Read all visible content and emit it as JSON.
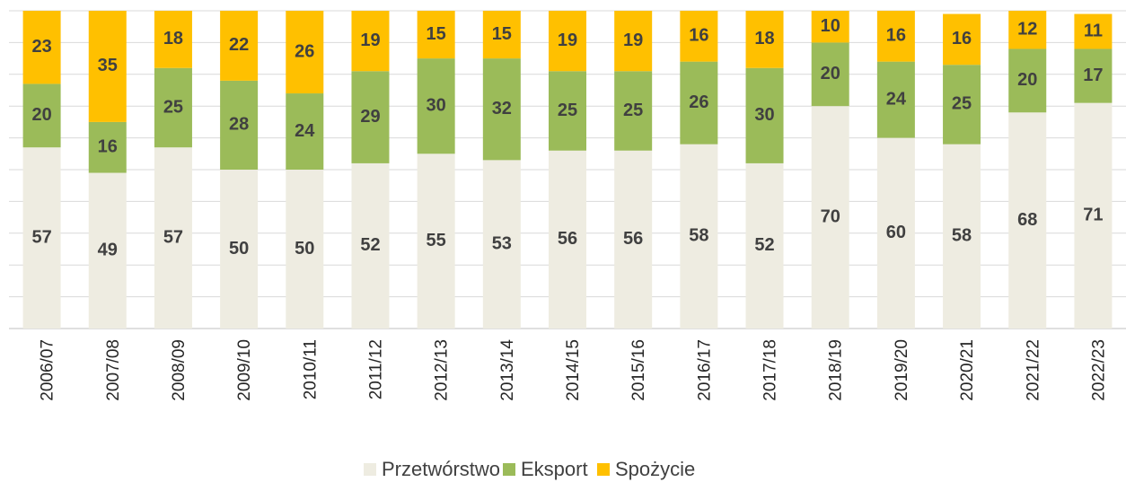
{
  "chart_data": {
    "type": "stacked_bar",
    "categories": [
      "2006/07",
      "2007/08",
      "2008/09",
      "2009/10",
      "2010/11",
      "2011/12",
      "2012/13",
      "2013/14",
      "2014/15",
      "2015/16",
      "2016/17",
      "2017/18",
      "2018/19",
      "2019/20",
      "2020/21",
      "2021/22",
      "2022/23"
    ],
    "series": [
      {
        "name": "Przetwórstwo",
        "color": "#eeece1",
        "values": [
          57,
          49,
          57,
          50,
          50,
          52,
          55,
          53,
          56,
          56,
          58,
          52,
          70,
          60,
          58,
          68,
          71
        ]
      },
      {
        "name": "Eksport",
        "color": "#9bbb59",
        "values": [
          20,
          16,
          25,
          28,
          24,
          29,
          30,
          32,
          25,
          25,
          26,
          30,
          20,
          24,
          25,
          20,
          17
        ]
      },
      {
        "name": "Spożycie",
        "color": "#ffc000",
        "values": [
          23,
          35,
          18,
          22,
          26,
          19,
          15,
          15,
          19,
          19,
          16,
          18,
          10,
          16,
          16,
          12,
          11
        ]
      }
    ],
    "ylim": [
      0,
      100
    ],
    "yticks": [
      0,
      10,
      20,
      30,
      40,
      50,
      60,
      70,
      80,
      90,
      100
    ],
    "grid": true,
    "legend": "bottom"
  }
}
